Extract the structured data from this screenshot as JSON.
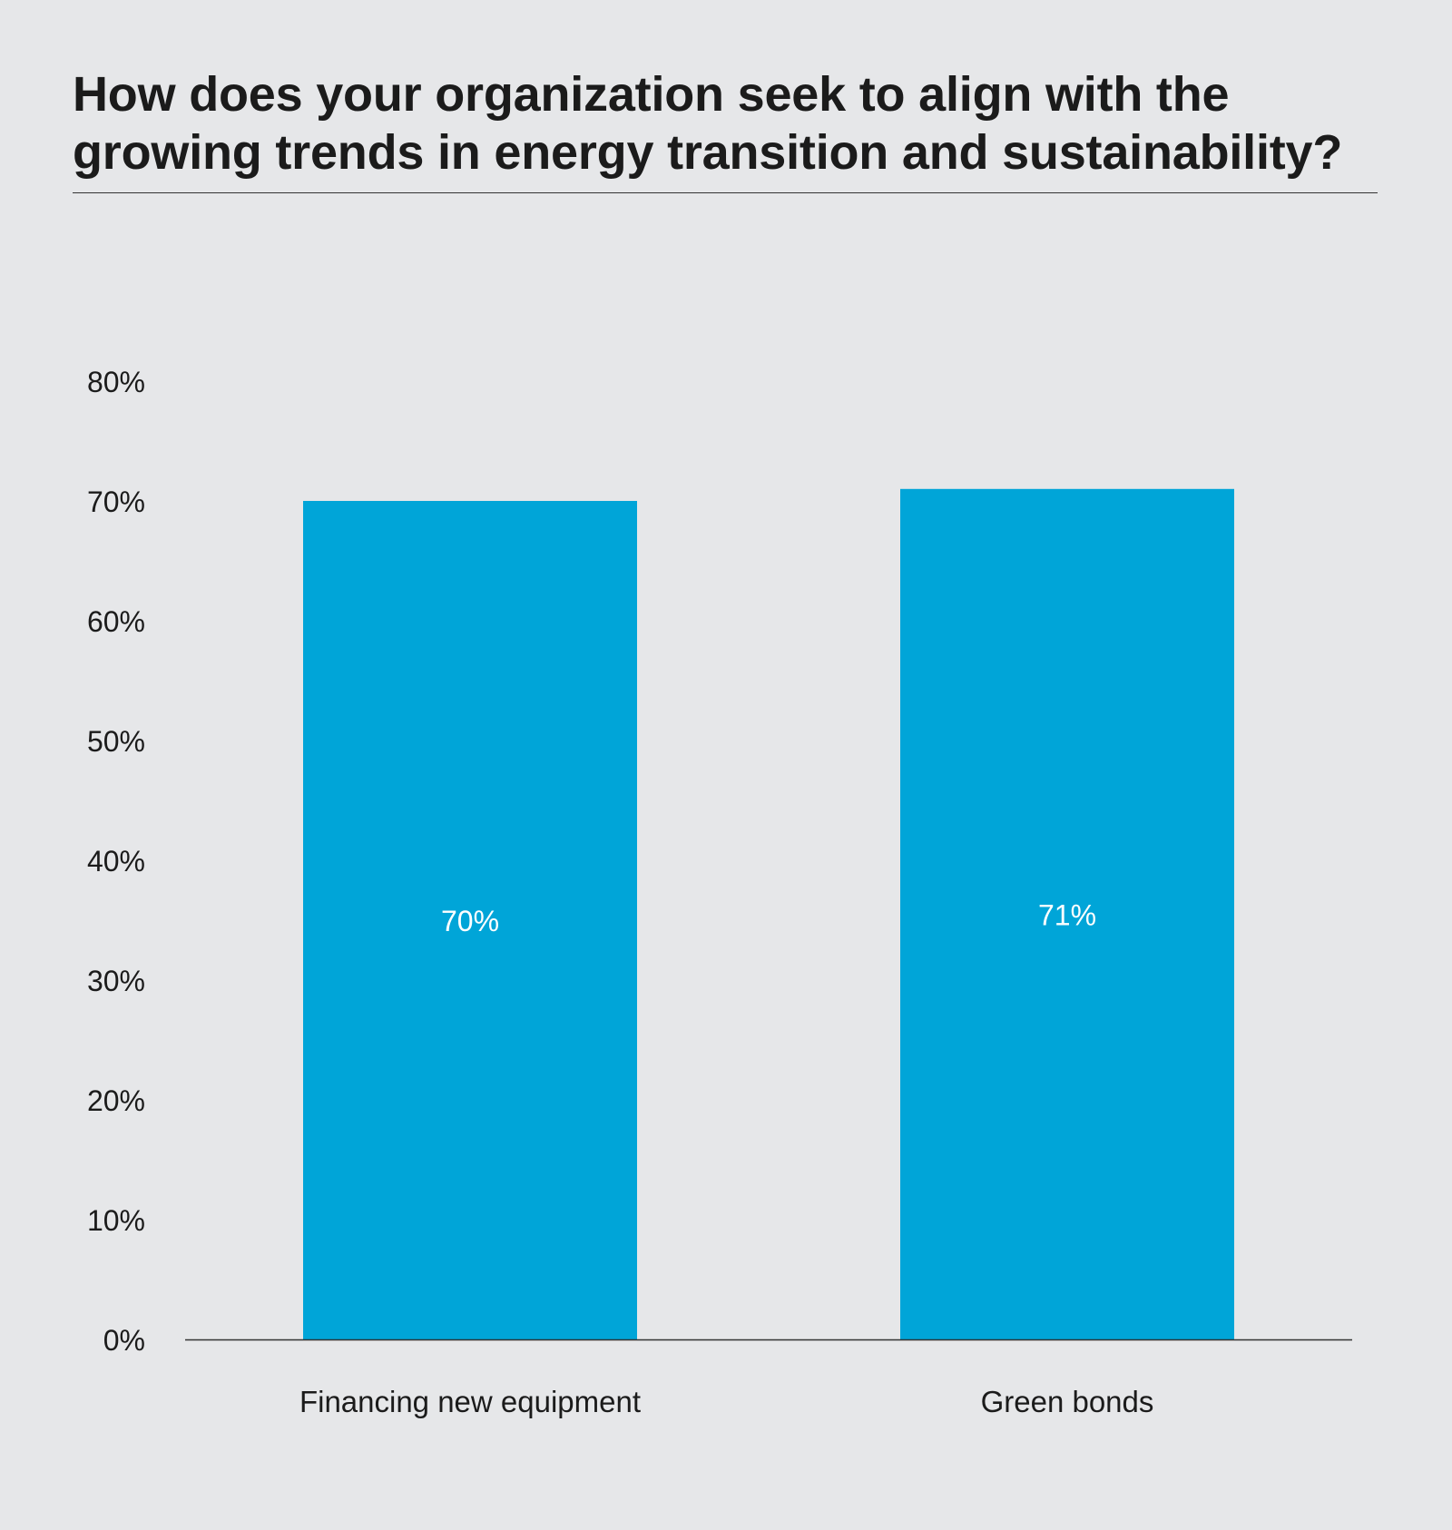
{
  "title": "How does your organization seek to align with the growing trends in energy transition and sustainability?",
  "colors": {
    "background": "#e6e7e9",
    "bar": "#00a5d8",
    "text": "#1b1b1b",
    "data_label": "#ffffff",
    "axis": "#333333"
  },
  "chart_data": {
    "type": "bar",
    "title": "How does your organization seek to align with the growing trends in energy transition and sustainability?",
    "xlabel": "",
    "ylabel": "",
    "categories": [
      "Financing new equipment",
      "Green bonds"
    ],
    "values": [
      70,
      71
    ],
    "data_labels": [
      "70%",
      "71%"
    ],
    "ylim": [
      0,
      80
    ],
    "yticks": [
      0,
      10,
      20,
      30,
      40,
      50,
      60,
      70,
      80
    ],
    "ytick_labels": [
      "0%",
      "10%",
      "20%",
      "30%",
      "40%",
      "50%",
      "60%",
      "70%",
      "80%"
    ],
    "grid": false,
    "legend": "none"
  }
}
